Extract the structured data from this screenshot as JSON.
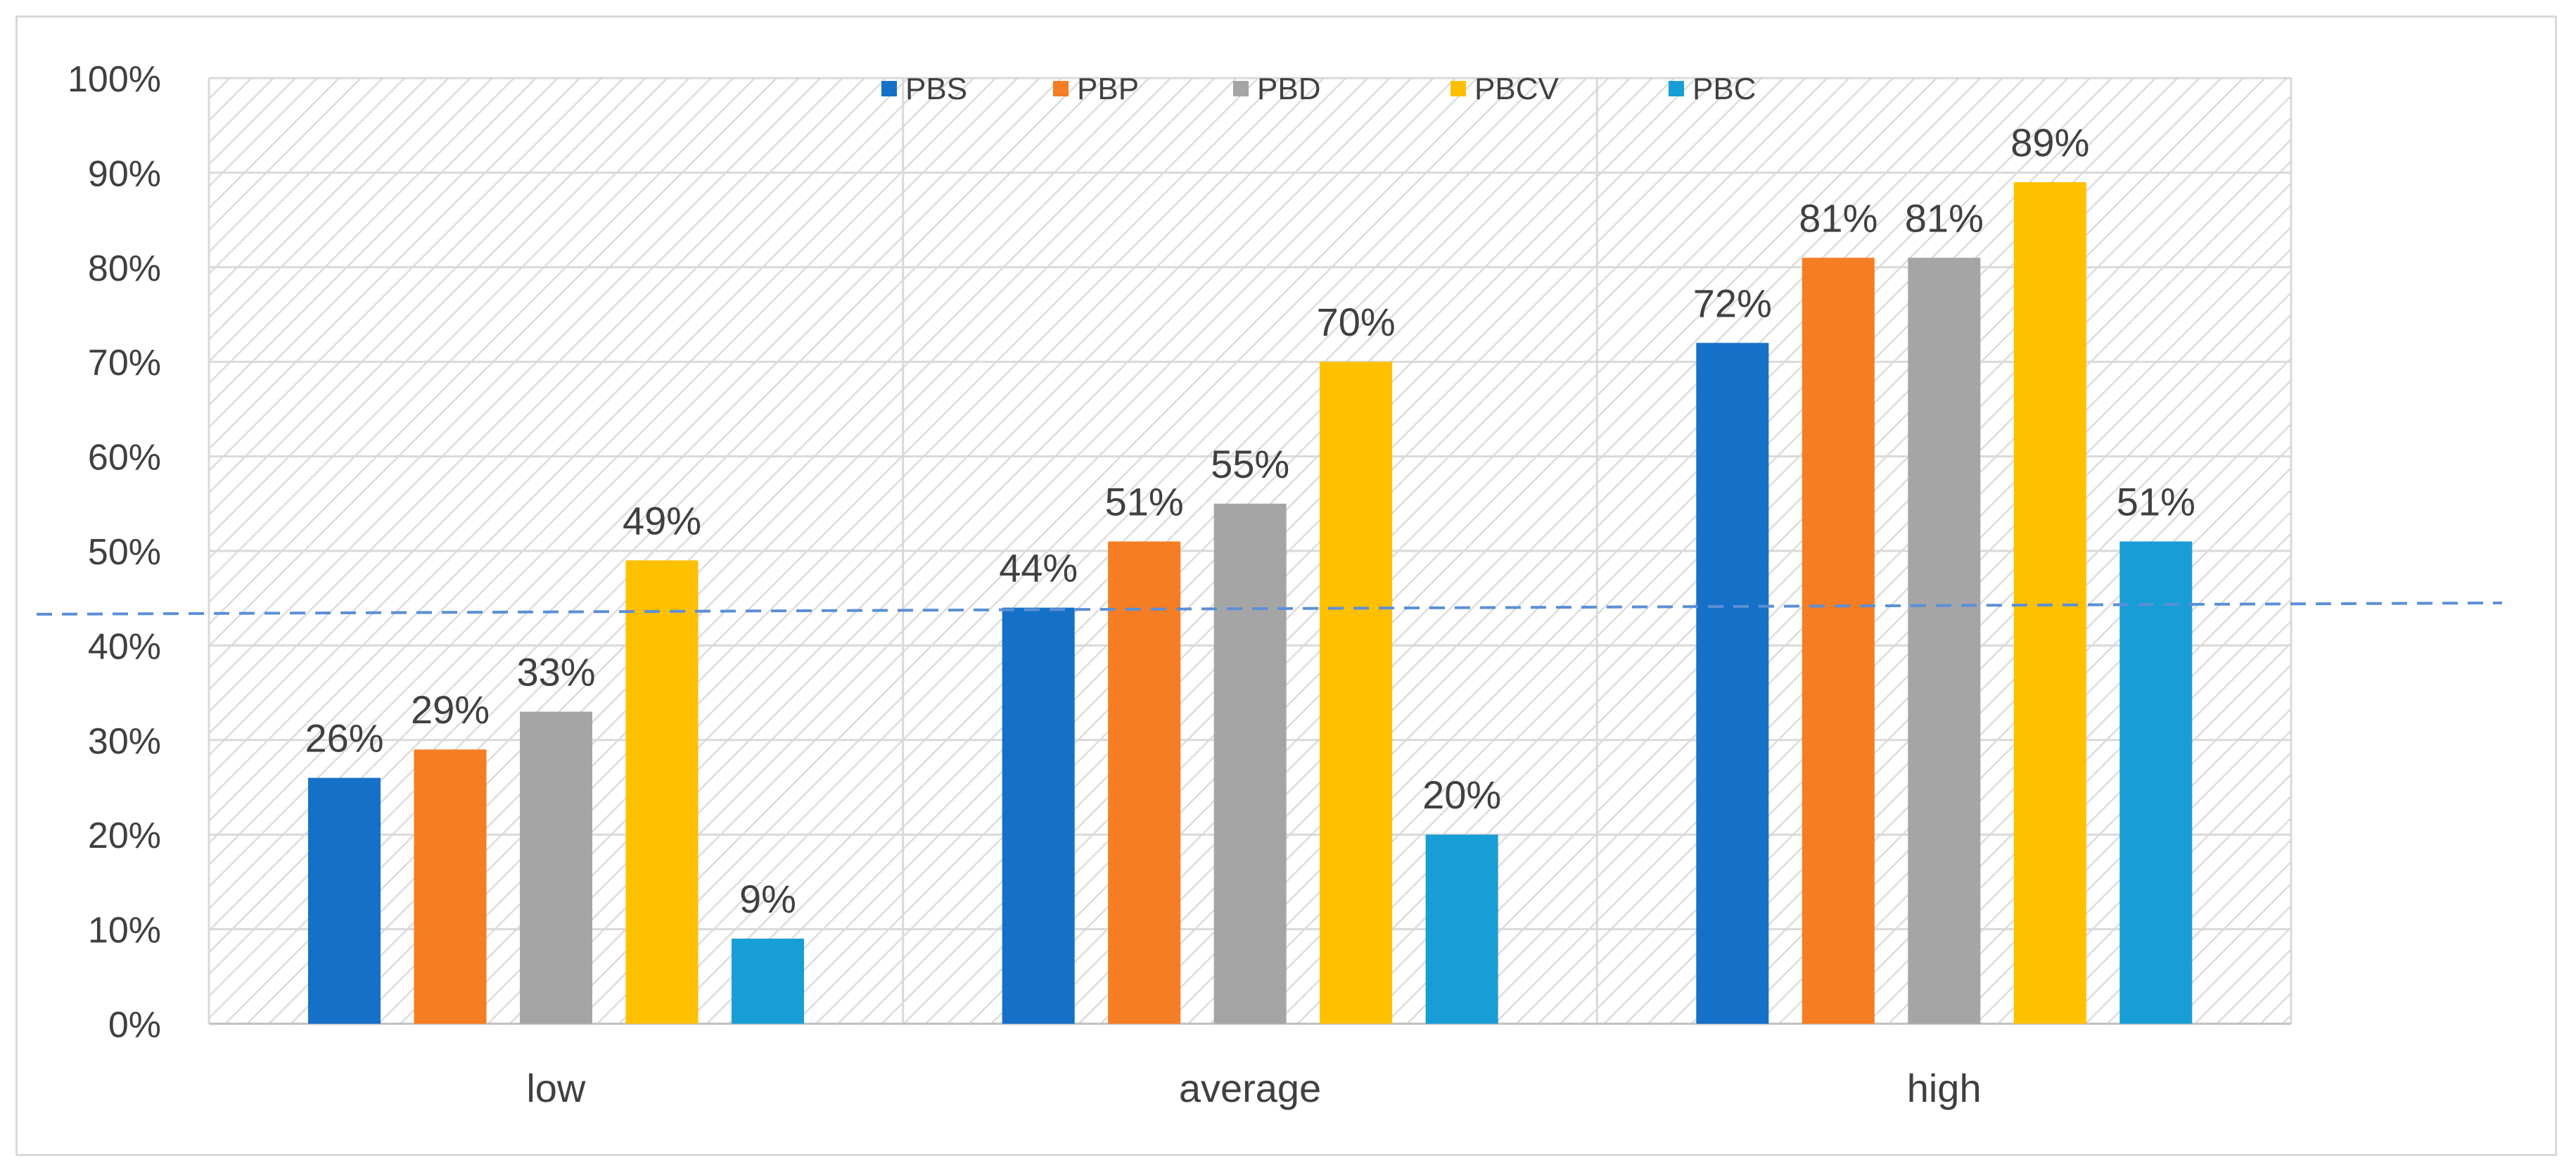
{
  "chart_data": {
    "type": "bar",
    "title": "",
    "xlabel": "",
    "ylabel": "",
    "categories": [
      "low",
      "average",
      "high"
    ],
    "ylim": [
      0,
      100
    ],
    "yticks": [
      0,
      10,
      20,
      30,
      40,
      50,
      60,
      70,
      80,
      90,
      100
    ],
    "ytick_suffix": "%",
    "legend_position": "top-center",
    "grid": true,
    "series": [
      {
        "name": "PBS",
        "values": [
          26,
          44,
          72
        ],
        "labels": [
          "26%",
          "44%",
          "72%"
        ],
        "color": "#1570c8"
      },
      {
        "name": "PBP",
        "values": [
          29,
          51,
          81
        ],
        "labels": [
          "29%",
          "51%",
          "81%"
        ],
        "color": "#f57d23"
      },
      {
        "name": "PBD",
        "values": [
          33,
          55,
          81
        ],
        "labels": [
          "33%",
          "55%",
          "81%"
        ],
        "color": "#a5a5a5"
      },
      {
        "name": "PBCV",
        "values": [
          49,
          70,
          89
        ],
        "labels": [
          "49%",
          "70%",
          "89%"
        ],
        "color": "#ffc000"
      },
      {
        "name": "PBC",
        "values": [
          9,
          20,
          51
        ],
        "labels": [
          "9%",
          "20%",
          "51%"
        ],
        "color": "#189ed6"
      }
    ],
    "reference_line": {
      "style": "dashed",
      "color": "#5b8fd6",
      "y_start": 43.3,
      "y_end": 44.5
    }
  }
}
